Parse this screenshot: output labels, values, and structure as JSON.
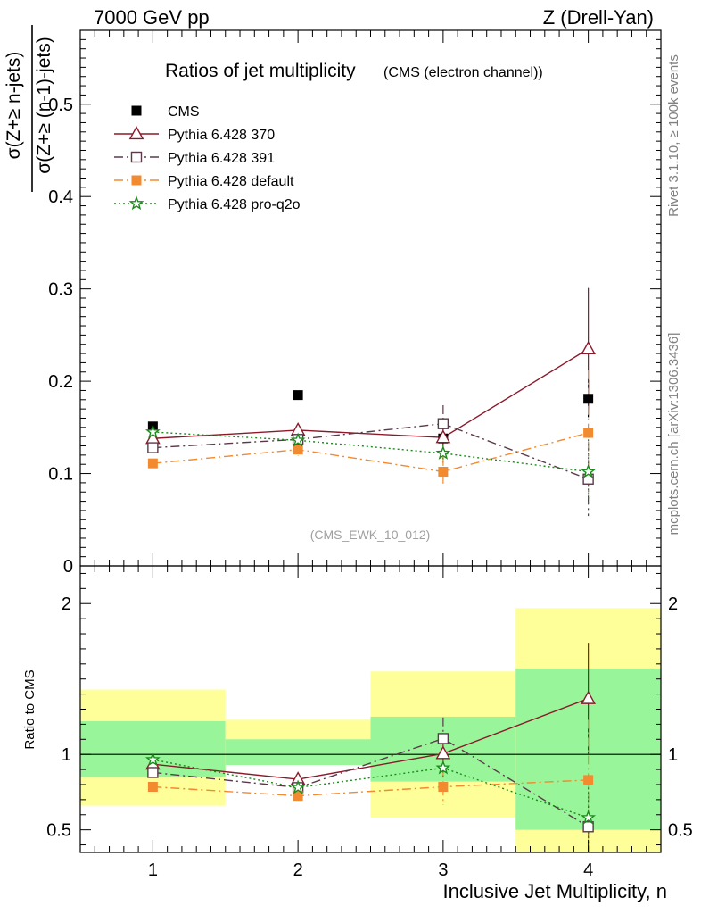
{
  "header": {
    "energy_label": "7000 GeV pp",
    "process_label": "Z (Drell-Yan)"
  },
  "side_labels": {
    "rivet": "Rivet 3.1.10, ≥ 100k events",
    "mcplots": "mcplots.cern.ch [arXiv:1306.3436]"
  },
  "chart_data": [
    {
      "type": "scatter",
      "title": "Ratios of jet multiplicity",
      "subtitle": "(CMS (electron channel))",
      "analysis_tag": "(CMS_EWK_10_012)",
      "ylabel_numerator": "σ(Z+≥ n-jets)",
      "ylabel_denominator": "σ(Z+≥ (n-1)-jets)",
      "xlim": [
        0.5,
        4.5
      ],
      "ylim": [
        0,
        0.58
      ],
      "yticks": [
        0,
        0.1,
        0.2,
        0.3,
        0.4,
        0.5
      ],
      "ytick_labels": [
        "0",
        "0.1",
        "0.2",
        "0.3",
        "0.4",
        "0.5"
      ],
      "legend_position": "top-left",
      "series": [
        {
          "name": "CMS",
          "key": "cms",
          "color": "#000000",
          "marker": "square-filled",
          "line": "none",
          "x": [
            1,
            2,
            3,
            4
          ],
          "y": [
            0.151,
            0.185,
            0.138,
            0.181
          ],
          "err": [
            0.004,
            0.004,
            0.008,
            0.02
          ]
        },
        {
          "name": "Pythia 6.428 370",
          "key": "p370",
          "color": "#8b1a2b",
          "marker": "triangle-open",
          "line": "solid",
          "x": [
            1,
            2,
            3,
            4
          ],
          "y": [
            0.138,
            0.147,
            0.139,
            0.235
          ],
          "err": [
            0.003,
            0.006,
            0.012,
            0.066
          ]
        },
        {
          "name": "Pythia 6.428 391",
          "key": "p391",
          "color": "#5a3a4a",
          "marker": "square-open",
          "line": "dashdot",
          "x": [
            1,
            2,
            3,
            4
          ],
          "y": [
            0.128,
            0.137,
            0.154,
            0.094
          ],
          "err": [
            0.003,
            0.006,
            0.02,
            0.04
          ]
        },
        {
          "name": "Pythia 6.428 default",
          "key": "pdef",
          "color": "#f28a30",
          "marker": "square-filled",
          "line": "dashdot",
          "x": [
            1,
            2,
            3,
            4
          ],
          "y": [
            0.111,
            0.126,
            0.102,
            0.144
          ],
          "err": [
            0.003,
            0.007,
            0.016,
            0.068
          ]
        },
        {
          "name": "Pythia 6.428 pro-q2o",
          "key": "pq2o",
          "color": "#1a8a1a",
          "marker": "star",
          "line": "dotted",
          "x": [
            1,
            2,
            3,
            4
          ],
          "y": [
            0.145,
            0.136,
            0.122,
            0.102
          ],
          "err": [
            0.003,
            0.005,
            0.01,
            0.035
          ]
        }
      ]
    },
    {
      "type": "scatter",
      "ylabel": "Ratio to CMS",
      "xlabel": "Inclusive Jet Multiplicity, n",
      "xlim": [
        0.5,
        4.5
      ],
      "ylim": [
        0.35,
        2.25
      ],
      "yticks": [
        0.5,
        1,
        2
      ],
      "ytick_labels": [
        "0.5",
        "1",
        "2"
      ],
      "xticks": [
        1,
        2,
        3,
        4
      ],
      "xtick_labels": [
        "1",
        "2",
        "3",
        "4"
      ],
      "reference_line": 1,
      "uncertainty_bands": [
        {
          "x_range": [
            0.5,
            1.5
          ],
          "inner": [
            0.85,
            1.22
          ],
          "outer": [
            0.66,
            1.43
          ]
        },
        {
          "x_range": [
            1.5,
            2.5
          ],
          "inner": [
            0.93,
            1.1
          ],
          "outer": [
            0.93,
            1.23
          ]
        },
        {
          "x_range": [
            2.5,
            3.5
          ],
          "inner": [
            0.82,
            1.25
          ],
          "outer": [
            0.58,
            1.55
          ]
        },
        {
          "x_range": [
            3.5,
            4.5
          ],
          "inner": [
            0.5,
            1.57
          ],
          "outer": [
            0.35,
            1.97
          ]
        }
      ],
      "band_colors": {
        "inner": "#99f599",
        "outer": "#ffff99"
      },
      "series": [
        {
          "name": "Pythia 6.428 370",
          "key": "p370",
          "color": "#8b1a2b",
          "marker": "triangle-open",
          "line": "solid",
          "x": [
            1,
            2,
            3,
            4
          ],
          "y": [
            0.935,
            0.835,
            1.005,
            1.37
          ],
          "err": [
            0.02,
            0.035,
            0.09,
            0.37
          ]
        },
        {
          "name": "Pythia 6.428 391",
          "key": "p391",
          "color": "#5a3a4a",
          "marker": "square-open",
          "line": "dashdot",
          "x": [
            1,
            2,
            3,
            4
          ],
          "y": [
            0.88,
            0.78,
            1.105,
            0.52
          ],
          "err": [
            0.02,
            0.035,
            0.14,
            0.22
          ]
        },
        {
          "name": "Pythia 6.428 default",
          "key": "pdef",
          "color": "#f28a30",
          "marker": "square-filled",
          "line": "dashdot",
          "x": [
            1,
            2,
            3,
            4
          ],
          "y": [
            0.785,
            0.725,
            0.785,
            0.83
          ],
          "err": [
            0.02,
            0.04,
            0.12,
            0.4
          ]
        },
        {
          "name": "Pythia 6.428 pro-q2o",
          "key": "pq2o",
          "color": "#1a8a1a",
          "marker": "star",
          "line": "dotted",
          "x": [
            1,
            2,
            3,
            4
          ],
          "y": [
            0.965,
            0.78,
            0.91,
            0.58
          ],
          "err": [
            0.02,
            0.03,
            0.07,
            0.2
          ]
        }
      ]
    }
  ]
}
